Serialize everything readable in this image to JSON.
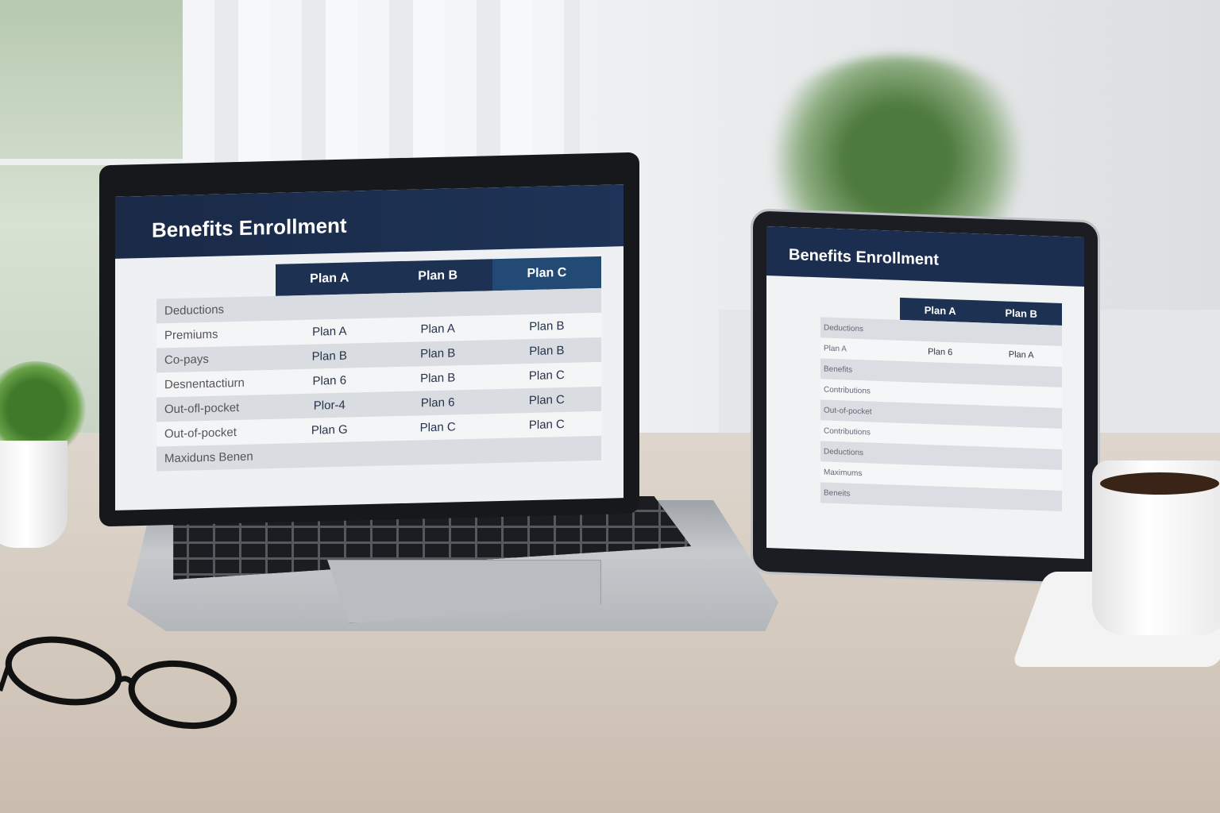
{
  "laptop": {
    "title": "Benefits Enrollment",
    "columns": [
      "Plan A",
      "Plan B",
      "Plan C"
    ],
    "rows": [
      {
        "label": "Deductions",
        "cells": [
          "",
          "",
          ""
        ]
      },
      {
        "label": "Premiums",
        "cells": [
          "Plan A",
          "Plan A",
          "Plan B"
        ]
      },
      {
        "label": "Co-pays",
        "cells": [
          "Plan B",
          "Plan B",
          "Plan B"
        ]
      },
      {
        "label": "Desnentactiurn",
        "cells": [
          "Plan 6",
          "Plan B",
          "Plan C"
        ]
      },
      {
        "label": "Out-ofl-pocket",
        "cells": [
          "Plor-4",
          "Plan 6",
          "Plan C"
        ]
      },
      {
        "label": "Out-of-pocket",
        "cells": [
          "Plan G",
          "Plan C",
          "Plan C"
        ]
      },
      {
        "label": "Maxiduns Benen",
        "cells": [
          "",
          "",
          ""
        ]
      }
    ]
  },
  "tablet": {
    "title": "Benefits Enrollment",
    "columns": [
      "Plan A",
      "Plan B"
    ],
    "rows": [
      {
        "label": "Deductions",
        "cells": [
          "",
          ""
        ]
      },
      {
        "label": "Plan A",
        "cells": [
          "Plan 6",
          "Plan A"
        ]
      },
      {
        "label": "Benefits",
        "cells": [
          "",
          ""
        ]
      },
      {
        "label": "Contributions",
        "cells": [
          "",
          ""
        ]
      },
      {
        "label": "Out-of-pocket",
        "cells": [
          "",
          ""
        ]
      },
      {
        "label": "Contributions",
        "cells": [
          "",
          ""
        ]
      },
      {
        "label": "Deductions",
        "cells": [
          "",
          ""
        ]
      },
      {
        "label": "Maximums",
        "cells": [
          "",
          ""
        ]
      },
      {
        "label": "Beneits",
        "cells": [
          "",
          ""
        ]
      }
    ]
  }
}
